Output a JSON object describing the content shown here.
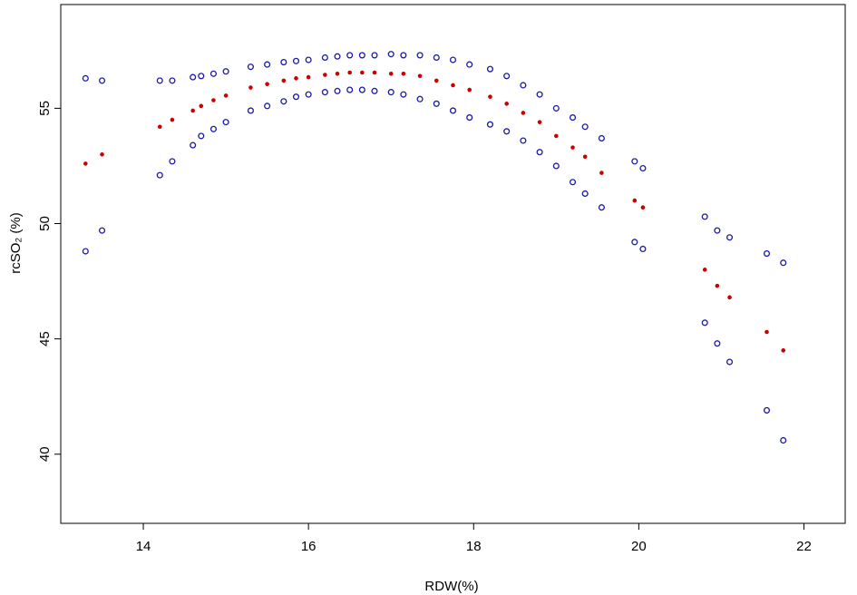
{
  "chart_data": {
    "type": "scatter",
    "title": "",
    "xlabel": "RDW(%)",
    "ylabel": "rcSO₂ (%)",
    "xlim": [
      13.0,
      22.5
    ],
    "ylim": [
      37.0,
      59.5
    ],
    "x_ticks": [
      14,
      16,
      18,
      20,
      22
    ],
    "x_tick_labels": [
      "14",
      "16",
      "18",
      "20",
      "22"
    ],
    "y_ticks": [
      40,
      45,
      50,
      55
    ],
    "y_tick_labels": [
      "40",
      "45",
      "50",
      "55"
    ],
    "grid": false,
    "colors": {
      "upper": "#1a1aa8",
      "fit": "#cc0000",
      "lower": "#1a1aa8"
    },
    "x": [
      13.3,
      13.5,
      14.2,
      14.35,
      14.6,
      14.7,
      14.85,
      15.0,
      15.3,
      15.5,
      15.7,
      15.85,
      16.0,
      16.2,
      16.35,
      16.5,
      16.65,
      16.8,
      17.0,
      17.15,
      17.35,
      17.55,
      17.75,
      17.95,
      18.2,
      18.4,
      18.6,
      18.8,
      19.0,
      19.2,
      19.35,
      19.55,
      19.95,
      20.05,
      20.8,
      20.95,
      21.1,
      21.55,
      21.75
    ],
    "series": [
      {
        "values": [
          56.3,
          56.2,
          56.2,
          56.2,
          56.35,
          56.4,
          56.5,
          56.6,
          56.8,
          56.9,
          57.0,
          57.05,
          57.1,
          57.2,
          57.25,
          57.3,
          57.3,
          57.3,
          57.35,
          57.3,
          57.3,
          57.2,
          57.1,
          56.9,
          56.7,
          56.4,
          56.0,
          55.6,
          55.0,
          54.6,
          54.2,
          53.7,
          52.7,
          52.4,
          50.3,
          49.7,
          49.4,
          48.7,
          48.3
        ]
      },
      {
        "values": [
          52.6,
          53.0,
          54.2,
          54.5,
          54.9,
          55.1,
          55.35,
          55.55,
          55.9,
          56.05,
          56.2,
          56.3,
          56.35,
          56.45,
          56.5,
          56.55,
          56.55,
          56.55,
          56.5,
          56.5,
          56.4,
          56.2,
          56.0,
          55.8,
          55.5,
          55.2,
          54.8,
          54.4,
          53.8,
          53.3,
          52.9,
          52.2,
          51.0,
          50.7,
          48.0,
          47.3,
          46.8,
          45.3,
          44.5
        ]
      },
      {
        "values": [
          48.8,
          49.7,
          52.1,
          52.7,
          53.4,
          53.8,
          54.1,
          54.4,
          54.9,
          55.1,
          55.3,
          55.5,
          55.6,
          55.7,
          55.75,
          55.8,
          55.8,
          55.75,
          55.7,
          55.6,
          55.4,
          55.2,
          54.9,
          54.6,
          54.3,
          54.0,
          53.6,
          53.1,
          52.5,
          51.8,
          51.3,
          50.7,
          49.2,
          48.9,
          45.7,
          44.8,
          44.0,
          41.9,
          40.6
        ]
      }
    ]
  }
}
